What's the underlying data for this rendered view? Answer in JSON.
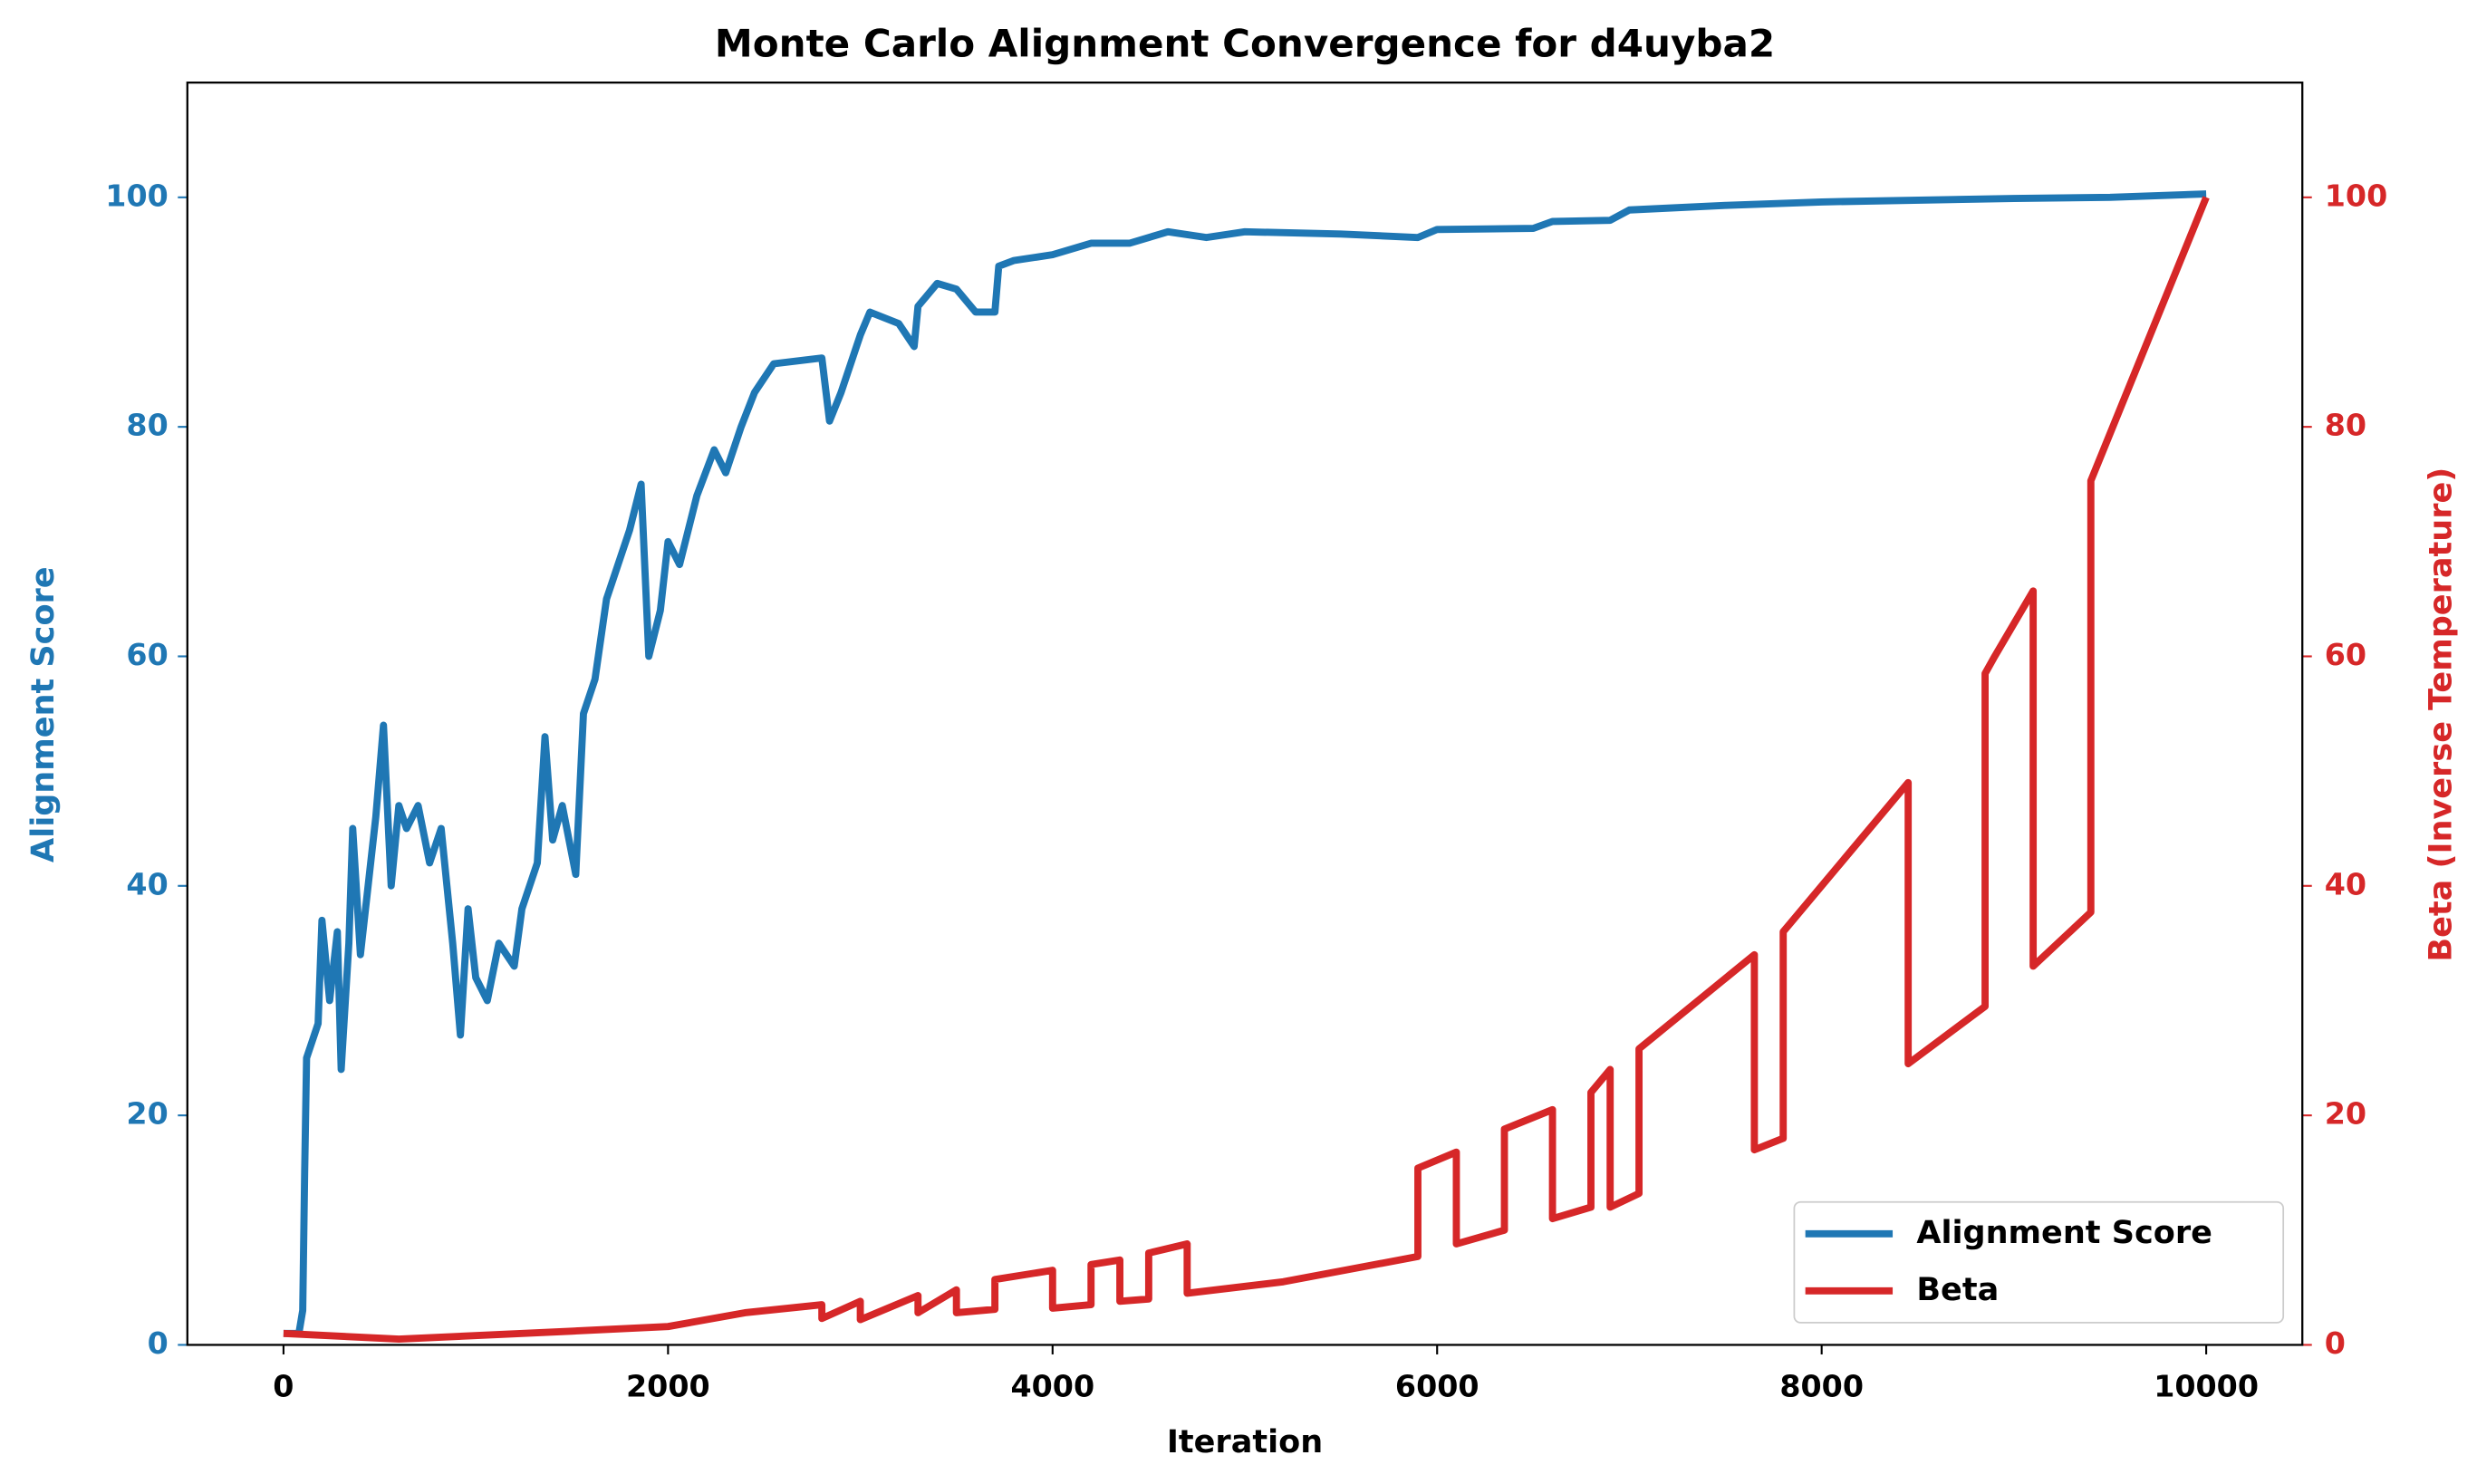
{
  "chart_data": {
    "type": "line",
    "title": "Monte Carlo Alignment Convergence for d4uyba2",
    "x_label": "Iteration",
    "y_label": "Alignment Score",
    "y2_label": "Beta (Inverse Temperature)",
    "xlim": [
      -500,
      10500
    ],
    "xticks": [
      0,
      2000,
      4000,
      6000,
      8000,
      10000
    ],
    "ylim": [
      0,
      110
    ],
    "yticks": [
      0,
      20,
      40,
      60,
      80,
      100
    ],
    "y2lim": [
      0,
      110
    ],
    "y2ticks": [
      0,
      20,
      40,
      60,
      80,
      100
    ],
    "legend": "lower right",
    "series": [
      {
        "name": "Alignment Score",
        "color": "#1f77b4",
        "axis": "y",
        "x": [
          0,
          80,
          100,
          110,
          120,
          180,
          200,
          240,
          280,
          300,
          340,
          360,
          400,
          440,
          480,
          520,
          560,
          600,
          640,
          700,
          760,
          820,
          880,
          920,
          960,
          1000,
          1060,
          1120,
          1200,
          1240,
          1320,
          1360,
          1400,
          1450,
          1520,
          1560,
          1620,
          1680,
          1740,
          1800,
          1860,
          1900,
          1960,
          2000,
          2060,
          2150,
          2240,
          2300,
          2380,
          2450,
          2550,
          2800,
          2840,
          2900,
          3000,
          3050,
          3200,
          3280,
          3300,
          3400,
          3500,
          3600,
          3700,
          3720,
          3800,
          4000,
          4200,
          4400,
          4600,
          4800,
          5000,
          5500,
          5900,
          6000,
          6500,
          6600,
          6900,
          7000,
          7500,
          8000,
          9000,
          9500,
          10000
        ],
        "values": [
          1,
          1,
          3,
          15,
          25,
          28,
          37,
          30,
          36,
          24,
          35,
          45,
          34,
          40,
          46,
          54,
          40,
          47,
          45,
          47,
          42,
          45,
          35,
          27,
          38,
          32,
          30,
          35,
          33,
          38,
          42,
          53,
          44,
          47,
          41,
          55,
          58,
          65,
          68,
          71,
          75,
          60,
          64,
          70,
          68,
          74,
          78,
          76,
          80,
          83,
          85.5,
          86,
          80.5,
          83,
          88,
          90,
          89,
          87,
          90.5,
          92.5,
          92,
          90,
          90,
          94,
          94.5,
          95,
          96,
          96,
          97,
          96.5,
          97,
          96.8,
          96.5,
          97.2,
          97.3,
          97.9,
          98,
          98.9,
          99.3,
          99.6,
          99.9,
          100,
          100.3
        ]
      },
      {
        "name": "Beta",
        "color": "#d62728",
        "axis": "y2",
        "x": [
          0,
          600,
          1500,
          2000,
          2400,
          2800,
          2800,
          3000,
          3000,
          3300,
          3300,
          3500,
          3500,
          3700,
          3700,
          4000,
          4000,
          4200,
          4200,
          4350,
          4350,
          4500,
          4500,
          4700,
          4700,
          5200,
          5900,
          5900,
          6100,
          6100,
          6350,
          6350,
          6600,
          6600,
          6800,
          6800,
          6900,
          6900,
          7050,
          7050,
          7650,
          7650,
          7800,
          7800,
          8450,
          8450,
          8850,
          8850,
          8900,
          9100,
          9100,
          9400,
          9400,
          10000
        ],
        "values": [
          1,
          0.5,
          1.2,
          1.6,
          2.8,
          3.5,
          2.3,
          3.8,
          2.2,
          4.3,
          2.8,
          4.8,
          2.8,
          3.1,
          5.7,
          6.5,
          3.2,
          3.5,
          7,
          7.4,
          3.8,
          4,
          8,
          8.8,
          4.5,
          5.5,
          7.7,
          15.4,
          16.8,
          8.8,
          10,
          18.8,
          20.5,
          11,
          12,
          22,
          24,
          12,
          13.2,
          25.8,
          34,
          17,
          18,
          36,
          49,
          24.5,
          29.5,
          58.5,
          60,
          65.7,
          33,
          37.7,
          75.3,
          100
        ]
      }
    ]
  }
}
